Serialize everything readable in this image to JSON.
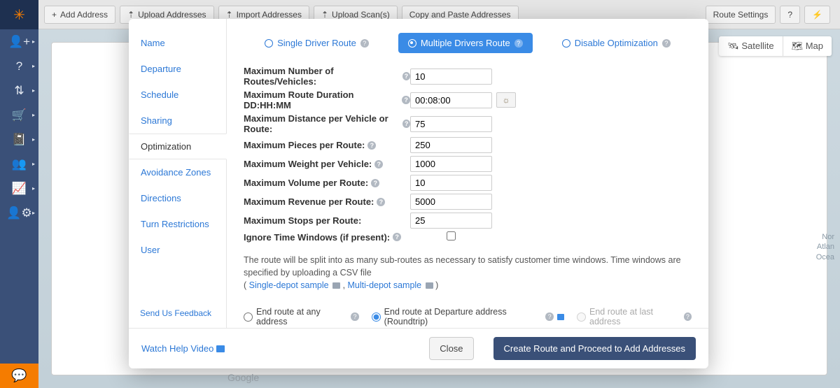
{
  "toolbar": {
    "buttons": [
      {
        "label": "Add Address",
        "icon": "+"
      },
      {
        "label": "Upload Addresses",
        "icon": "⇡"
      },
      {
        "label": "Import Addresses",
        "icon": "⇡"
      },
      {
        "label": "Upload Scan(s)",
        "icon": "⇡"
      },
      {
        "label": "Copy and Paste Addresses",
        "icon": ""
      }
    ],
    "right": [
      {
        "label": "Route Settings",
        "icon": ""
      },
      {
        "label": "",
        "icon": "?"
      },
      {
        "label": "",
        "icon": "⚡"
      }
    ]
  },
  "sidebar_icons": [
    "👤+",
    "?",
    "⇅",
    "🛒",
    "📓",
    "👥",
    "📈",
    "👤⚙"
  ],
  "chat_icon": "💬",
  "logo_icon": "✳",
  "map": {
    "controls": [
      {
        "label": "Satellite",
        "icon": "🛰"
      },
      {
        "label": "Map",
        "icon": "🗺"
      }
    ],
    "right_label": "Nor\nAtlan\nOcea",
    "brand": "Google"
  },
  "modal": {
    "sidebar_tabs": [
      "Name",
      "Departure",
      "Schedule",
      "Sharing",
      "Optimization",
      "Avoidance Zones",
      "Directions",
      "Turn Restrictions",
      "User"
    ],
    "active_tab_index": 4,
    "feedback_link": "Send Us Feedback",
    "opt_tabs": [
      "Single Driver Route",
      "Multiple Drivers Route",
      "Disable Optimization"
    ],
    "opt_active_index": 1,
    "fields": [
      {
        "label": "Maximum Number of Routes/Vehicles:",
        "value": "10",
        "help": true
      },
      {
        "label": "Maximum Route Duration DD:HH:MM",
        "value": "00:08:00",
        "help": true,
        "time_icon": true
      },
      {
        "label": "Maximum Distance per Vehicle or Route:",
        "value": "75",
        "help": true
      },
      {
        "label": "Maximum Pieces per Route:",
        "value": "250",
        "help": true
      },
      {
        "label": "Maximum Weight per Vehicle:",
        "value": "1000",
        "help": true
      },
      {
        "label": "Maximum Volume per Route:",
        "value": "10",
        "help": true
      },
      {
        "label": "Maximum Revenue per Route:",
        "value": "5000",
        "help": true
      },
      {
        "label": "Maximum Stops per Route:",
        "value": "25",
        "help": false
      }
    ],
    "checkbox_row": {
      "label": "Ignore Time Windows (if present):",
      "checked": false
    },
    "helper": {
      "text": "The route will be split into as many sub-routes as necessary to satisfy customer time windows. Time windows are specified by uploading a CSV file",
      "links": [
        {
          "text": "Single-depot sample"
        },
        {
          "text": "Multi-depot sample"
        }
      ]
    },
    "end_route": {
      "options": [
        "End route at any address",
        "End route at Departure address (Roundtrip)",
        "End route at last address"
      ],
      "selected_index": 1
    },
    "footer": {
      "watch_link": "Watch Help Video",
      "close": "Close",
      "create": "Create Route and Proceed to Add Addresses"
    }
  },
  "colors": {
    "primary": "#3a8be6",
    "dark": "#3a5078",
    "link": "#2c78d6"
  }
}
